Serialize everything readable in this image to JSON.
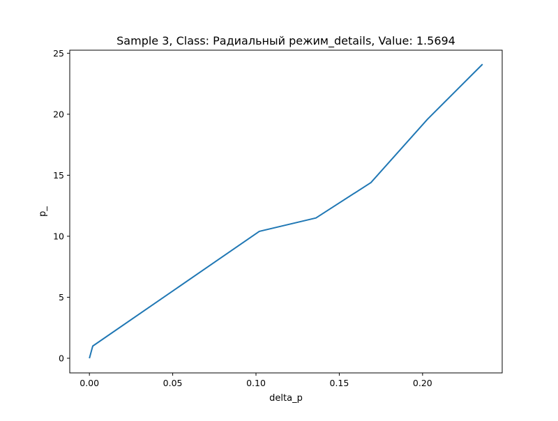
{
  "chart_data": {
    "type": "line",
    "title": "Sample 3, Class: Радиальный режим_details, Value: 1.5694",
    "xlabel": "delta_p",
    "ylabel": "p_",
    "xlim": [
      -0.0118,
      0.2478
    ],
    "ylim": [
      -1.2,
      25.25
    ],
    "xticks": [
      0.0,
      0.05,
      0.1,
      0.15,
      0.2
    ],
    "xtick_labels": [
      "0.00",
      "0.05",
      "0.10",
      "0.15",
      "0.20"
    ],
    "yticks": [
      0,
      5,
      10,
      15,
      20,
      25
    ],
    "ytick_labels": [
      "0",
      "5",
      "10",
      "15",
      "20",
      "25"
    ],
    "grid": false,
    "legend": "none",
    "series": [
      {
        "color": "#1f77b4",
        "x": [
          0.0,
          0.002,
          0.102,
          0.136,
          0.169,
          0.203,
          0.236
        ],
        "y": [
          0.0,
          1.0,
          10.4,
          11.5,
          14.4,
          19.6,
          24.1
        ]
      }
    ]
  }
}
